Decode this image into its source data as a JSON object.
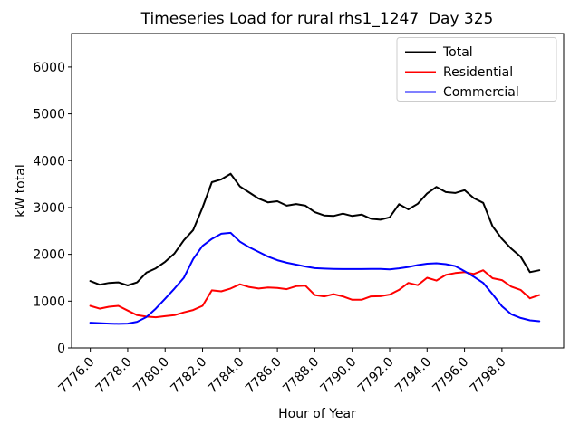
{
  "chart_data": {
    "type": "line",
    "title": "Timeseries Load for rural rhs1_1247  Day 325",
    "xlabel": "Hour of Year",
    "ylabel": "kW total",
    "xlim": [
      7775.0,
      7801.3
    ],
    "ylim": [
      0,
      6714
    ],
    "grid": false,
    "legend_position": "upper right",
    "background_color": "#ffffff",
    "spine_color": "#000000",
    "legend_border_color": "#cccccc",
    "xticks": [
      7776,
      7778,
      7780,
      7782,
      7784,
      7786,
      7788,
      7790,
      7792,
      7794,
      7796,
      7798
    ],
    "xtick_labels": [
      "7776.0",
      "7778.0",
      "7780.0",
      "7782.0",
      "7784.0",
      "7786.0",
      "7788.0",
      "7790.0",
      "7792.0",
      "7794.0",
      "7796.0",
      "7798.0"
    ],
    "yticks": [
      0,
      1000,
      2000,
      3000,
      4000,
      5000,
      6000
    ],
    "ytick_labels": [
      "0",
      "1000",
      "2000",
      "3000",
      "4000",
      "5000",
      "6000"
    ],
    "x": [
      7776.0,
      7776.5,
      7777.0,
      7777.5,
      7778.0,
      7778.5,
      7779.0,
      7779.5,
      7780.0,
      7780.5,
      7781.0,
      7781.5,
      7782.0,
      7782.5,
      7783.0,
      7783.5,
      7784.0,
      7784.5,
      7785.0,
      7785.5,
      7786.0,
      7786.5,
      7787.0,
      7787.5,
      7788.0,
      7788.5,
      7789.0,
      7789.5,
      7790.0,
      7790.5,
      7791.0,
      7791.5,
      7792.0,
      7792.5,
      7793.0,
      7793.5,
      7794.0,
      7794.5,
      7795.0,
      7795.5,
      7796.0,
      7796.5,
      7797.0,
      7797.5,
      7798.0,
      7798.5,
      7799.0,
      7799.5,
      7800.0
    ],
    "series": [
      {
        "name": "Total",
        "color": "#000000",
        "values": [
          1430,
          1350,
          1390,
          1400,
          1335,
          1400,
          1610,
          1700,
          1840,
          2020,
          2300,
          2520,
          3000,
          3540,
          3600,
          3720,
          3450,
          3320,
          3190,
          3110,
          3135,
          3040,
          3075,
          3040,
          2900,
          2830,
          2820,
          2870,
          2820,
          2850,
          2760,
          2740,
          2790,
          3070,
          2960,
          3080,
          3300,
          3440,
          3330,
          3310,
          3370,
          3200,
          3100,
          2600,
          2330,
          2120,
          1950,
          1620,
          1660
        ]
      },
      {
        "name": "Residential",
        "color": "#ff0000",
        "values": [
          900,
          840,
          880,
          900,
          800,
          700,
          670,
          655,
          680,
          700,
          760,
          810,
          900,
          1230,
          1210,
          1270,
          1360,
          1300,
          1270,
          1290,
          1280,
          1255,
          1320,
          1330,
          1130,
          1100,
          1150,
          1100,
          1030,
          1030,
          1100,
          1105,
          1140,
          1240,
          1390,
          1340,
          1500,
          1440,
          1560,
          1600,
          1620,
          1580,
          1660,
          1490,
          1450,
          1310,
          1240,
          1060,
          1130
        ]
      },
      {
        "name": "Commercial",
        "color": "#0000ff",
        "values": [
          540,
          530,
          520,
          515,
          520,
          560,
          660,
          840,
          1050,
          1270,
          1500,
          1900,
          2180,
          2330,
          2440,
          2460,
          2270,
          2150,
          2050,
          1950,
          1875,
          1820,
          1780,
          1740,
          1705,
          1695,
          1690,
          1685,
          1685,
          1685,
          1690,
          1690,
          1680,
          1700,
          1730,
          1770,
          1800,
          1810,
          1790,
          1750,
          1640,
          1520,
          1390,
          1150,
          890,
          720,
          640,
          590,
          570
        ]
      }
    ]
  }
}
